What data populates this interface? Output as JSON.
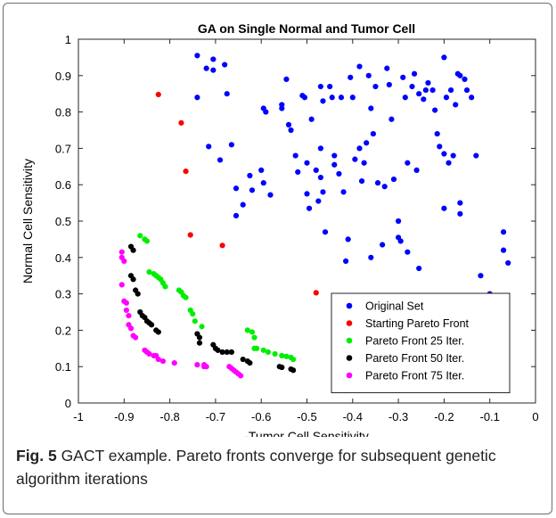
{
  "chart_data": {
    "type": "scatter",
    "title": "GA on Single Normal and Tumor Cell",
    "xlabel": "-Tumor Cell Sensitivity",
    "ylabel": "Normal Cell Sensitivity",
    "xlim": [
      -1,
      0
    ],
    "ylim": [
      0,
      1
    ],
    "xticks": [
      -1,
      -0.9,
      -0.8,
      -0.7,
      -0.6,
      -0.5,
      -0.4,
      -0.3,
      -0.2,
      -0.1,
      0
    ],
    "yticks": [
      0,
      0.1,
      0.2,
      0.3,
      0.4,
      0.5,
      0.6,
      0.7,
      0.8,
      0.9,
      1
    ],
    "grid": false,
    "legend_position": "bottom-right",
    "series": [
      {
        "name": "Original Set",
        "color": "#0000ff",
        "points": [
          [
            -0.74,
            0.955
          ],
          [
            -0.72,
            0.92
          ],
          [
            -0.705,
            0.945
          ],
          [
            -0.705,
            0.915
          ],
          [
            -0.68,
            0.93
          ],
          [
            -0.74,
            0.84
          ],
          [
            -0.675,
            0.85
          ],
          [
            -0.715,
            0.705
          ],
          [
            -0.69,
            0.668
          ],
          [
            -0.665,
            0.71
          ],
          [
            -0.655,
            0.59
          ],
          [
            -0.64,
            0.545
          ],
          [
            -0.655,
            0.515
          ],
          [
            -0.625,
            0.625
          ],
          [
            -0.62,
            0.585
          ],
          [
            -0.6,
            0.64
          ],
          [
            -0.595,
            0.605
          ],
          [
            -0.58,
            0.572
          ],
          [
            -0.595,
            0.81
          ],
          [
            -0.59,
            0.8
          ],
          [
            -0.555,
            0.82
          ],
          [
            -0.555,
            0.81
          ],
          [
            -0.545,
            0.89
          ],
          [
            -0.54,
            0.765
          ],
          [
            -0.535,
            0.75
          ],
          [
            -0.525,
            0.68
          ],
          [
            -0.52,
            0.635
          ],
          [
            -0.51,
            0.845
          ],
          [
            -0.505,
            0.84
          ],
          [
            -0.5,
            0.66
          ],
          [
            -0.5,
            0.575
          ],
          [
            -0.495,
            0.535
          ],
          [
            -0.49,
            0.78
          ],
          [
            -0.48,
            0.64
          ],
          [
            -0.475,
            0.555
          ],
          [
            -0.47,
            0.87
          ],
          [
            -0.465,
            0.83
          ],
          [
            -0.47,
            0.7
          ],
          [
            -0.47,
            0.62
          ],
          [
            -0.465,
            0.58
          ],
          [
            -0.46,
            0.47
          ],
          [
            -0.45,
            0.87
          ],
          [
            -0.445,
            0.84
          ],
          [
            -0.44,
            0.68
          ],
          [
            -0.44,
            0.655
          ],
          [
            -0.43,
            0.63
          ],
          [
            -0.42,
            0.58
          ],
          [
            -0.415,
            0.39
          ],
          [
            -0.41,
            0.45
          ],
          [
            -0.405,
            0.895
          ],
          [
            -0.4,
            0.84
          ],
          [
            -0.395,
            0.67
          ],
          [
            -0.385,
            0.7
          ],
          [
            -0.375,
            0.66
          ],
          [
            -0.37,
            0.715
          ],
          [
            -0.365,
            0.9
          ],
          [
            -0.36,
            0.81
          ],
          [
            -0.355,
            0.74
          ],
          [
            -0.345,
            0.605
          ],
          [
            -0.335,
            0.435
          ],
          [
            -0.33,
            0.595
          ],
          [
            -0.325,
            0.92
          ],
          [
            -0.32,
            0.875
          ],
          [
            -0.315,
            0.78
          ],
          [
            -0.31,
            0.615
          ],
          [
            -0.3,
            0.5
          ],
          [
            -0.3,
            0.455
          ],
          [
            -0.295,
            0.445
          ],
          [
            -0.29,
            0.895
          ],
          [
            -0.285,
            0.84
          ],
          [
            -0.28,
            0.415
          ],
          [
            -0.27,
            0.87
          ],
          [
            -0.255,
            0.85
          ],
          [
            -0.245,
            0.835
          ],
          [
            -0.24,
            0.86
          ],
          [
            -0.235,
            0.88
          ],
          [
            -0.225,
            0.86
          ],
          [
            -0.22,
            0.805
          ],
          [
            -0.215,
            0.74
          ],
          [
            -0.21,
            0.705
          ],
          [
            -0.2,
            0.685
          ],
          [
            -0.19,
            0.66
          ],
          [
            -0.185,
            0.86
          ],
          [
            -0.175,
            0.82
          ],
          [
            -0.165,
            0.9
          ],
          [
            -0.155,
            0.89
          ],
          [
            -0.15,
            0.86
          ],
          [
            -0.14,
            0.84
          ],
          [
            -0.13,
            0.68
          ],
          [
            -0.12,
            0.35
          ],
          [
            -0.1,
            0.3
          ],
          [
            -0.2,
            0.95
          ],
          [
            -0.195,
            0.84
          ],
          [
            -0.2,
            0.535
          ],
          [
            -0.17,
            0.905
          ],
          [
            -0.165,
            0.55
          ],
          [
            -0.165,
            0.52
          ],
          [
            -0.07,
            0.47
          ],
          [
            -0.07,
            0.42
          ],
          [
            -0.06,
            0.385
          ],
          [
            -0.255,
            0.37
          ],
          [
            -0.18,
            0.68
          ],
          [
            -0.28,
            0.66
          ],
          [
            -0.36,
            0.4
          ],
          [
            -0.425,
            0.84
          ],
          [
            -0.385,
            0.925
          ],
          [
            -0.35,
            0.87
          ],
          [
            -0.265,
            0.905
          ],
          [
            -0.38,
            0.61
          ],
          [
            -0.26,
            0.64
          ]
        ]
      },
      {
        "name": "Starting Pareto Front",
        "color": "#ff0000",
        "points": [
          [
            -0.825,
            0.848
          ],
          [
            -0.775,
            0.77
          ],
          [
            -0.765,
            0.637
          ],
          [
            -0.755,
            0.462
          ],
          [
            -0.685,
            0.433
          ],
          [
            -0.48,
            0.303
          ]
        ]
      },
      {
        "name": "Pareto Front 25 Iter.",
        "color": "#00ee00",
        "points": [
          [
            -0.865,
            0.46
          ],
          [
            -0.855,
            0.45
          ],
          [
            -0.85,
            0.445
          ],
          [
            -0.845,
            0.36
          ],
          [
            -0.835,
            0.355
          ],
          [
            -0.83,
            0.35
          ],
          [
            -0.825,
            0.345
          ],
          [
            -0.82,
            0.34
          ],
          [
            -0.815,
            0.33
          ],
          [
            -0.81,
            0.32
          ],
          [
            -0.78,
            0.31
          ],
          [
            -0.775,
            0.305
          ],
          [
            -0.77,
            0.295
          ],
          [
            -0.765,
            0.29
          ],
          [
            -0.755,
            0.255
          ],
          [
            -0.75,
            0.245
          ],
          [
            -0.745,
            0.225
          ],
          [
            -0.73,
            0.21
          ],
          [
            -0.63,
            0.2
          ],
          [
            -0.62,
            0.195
          ],
          [
            -0.615,
            0.18
          ],
          [
            -0.61,
            0.15
          ],
          [
            -0.595,
            0.145
          ],
          [
            -0.585,
            0.14
          ],
          [
            -0.57,
            0.135
          ],
          [
            -0.555,
            0.13
          ],
          [
            -0.545,
            0.128
          ],
          [
            -0.535,
            0.125
          ],
          [
            -0.53,
            0.12
          ],
          [
            -0.615,
            0.15
          ]
        ]
      },
      {
        "name": "Pareto Front 50 Iter.",
        "color": "#000000",
        "points": [
          [
            -0.885,
            0.43
          ],
          [
            -0.88,
            0.42
          ],
          [
            -0.885,
            0.35
          ],
          [
            -0.88,
            0.34
          ],
          [
            -0.875,
            0.31
          ],
          [
            -0.87,
            0.3
          ],
          [
            -0.865,
            0.25
          ],
          [
            -0.86,
            0.24
          ],
          [
            -0.855,
            0.235
          ],
          [
            -0.85,
            0.225
          ],
          [
            -0.845,
            0.22
          ],
          [
            -0.84,
            0.215
          ],
          [
            -0.83,
            0.2
          ],
          [
            -0.825,
            0.195
          ],
          [
            -0.74,
            0.19
          ],
          [
            -0.735,
            0.18
          ],
          [
            -0.735,
            0.165
          ],
          [
            -0.705,
            0.16
          ],
          [
            -0.7,
            0.15
          ],
          [
            -0.695,
            0.145
          ],
          [
            -0.685,
            0.14
          ],
          [
            -0.675,
            0.14
          ],
          [
            -0.665,
            0.14
          ],
          [
            -0.64,
            0.12
          ],
          [
            -0.63,
            0.115
          ],
          [
            -0.625,
            0.11
          ],
          [
            -0.56,
            0.1
          ],
          [
            -0.555,
            0.098
          ],
          [
            -0.535,
            0.093
          ],
          [
            -0.53,
            0.09
          ]
        ]
      },
      {
        "name": "Pareto Front 75 Iter.",
        "color": "#ff00ff",
        "points": [
          [
            -0.905,
            0.415
          ],
          [
            -0.905,
            0.4
          ],
          [
            -0.9,
            0.39
          ],
          [
            -0.905,
            0.325
          ],
          [
            -0.9,
            0.28
          ],
          [
            -0.895,
            0.275
          ],
          [
            -0.895,
            0.255
          ],
          [
            -0.89,
            0.24
          ],
          [
            -0.89,
            0.215
          ],
          [
            -0.885,
            0.205
          ],
          [
            -0.88,
            0.185
          ],
          [
            -0.875,
            0.18
          ],
          [
            -0.855,
            0.145
          ],
          [
            -0.85,
            0.14
          ],
          [
            -0.845,
            0.135
          ],
          [
            -0.835,
            0.13
          ],
          [
            -0.825,
            0.12
          ],
          [
            -0.815,
            0.115
          ],
          [
            -0.79,
            0.11
          ],
          [
            -0.74,
            0.105
          ],
          [
            -0.725,
            0.1
          ],
          [
            -0.72,
            0.1
          ],
          [
            -0.67,
            0.1
          ],
          [
            -0.665,
            0.095
          ],
          [
            -0.66,
            0.09
          ],
          [
            -0.655,
            0.085
          ],
          [
            -0.65,
            0.08
          ],
          [
            -0.645,
            0.075
          ],
          [
            -0.725,
            0.105
          ],
          [
            -0.83,
            0.13
          ]
        ]
      }
    ]
  },
  "caption": {
    "label": "Fig. 5",
    "text": " GACT example. Pareto fronts converge for subsequent genetic algorithm iterations"
  }
}
